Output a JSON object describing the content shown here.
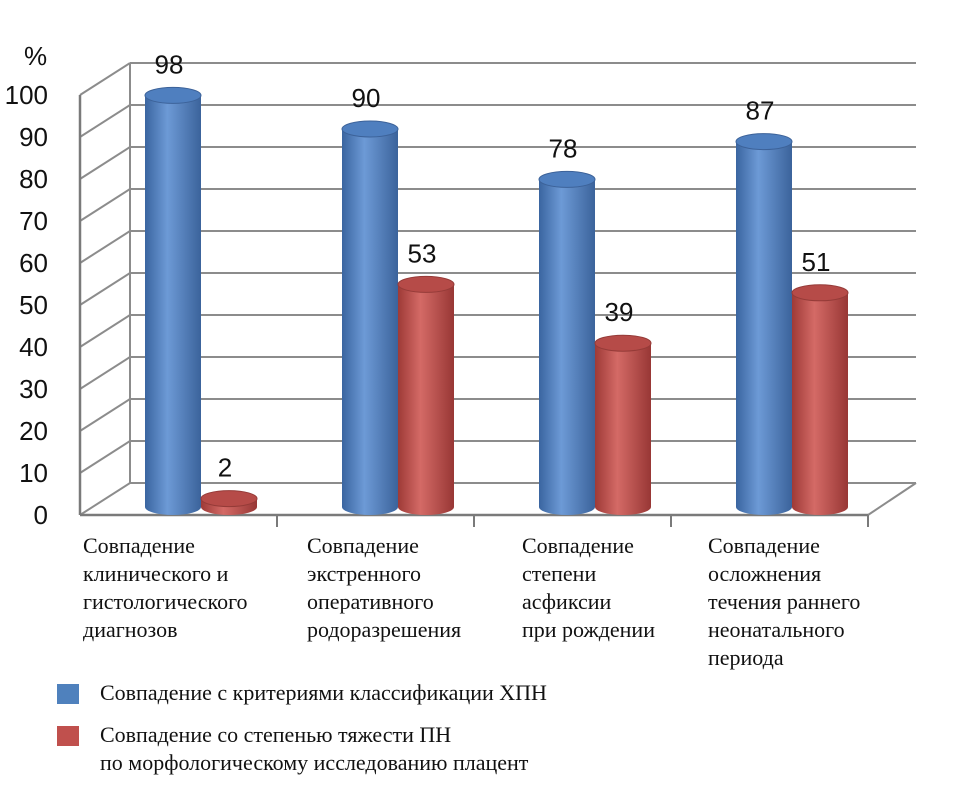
{
  "chart_data": {
    "type": "bar",
    "ylabel": "%",
    "ylim": [
      0,
      100
    ],
    "yticks": [
      "0",
      "10",
      "20",
      "30",
      "40",
      "50",
      "60",
      "70",
      "80",
      "90",
      "100"
    ],
    "grid": true,
    "legend_position": "bottom",
    "categories": [
      [
        "Совпадение",
        "клинического и",
        "гистологического",
        "диагнозов"
      ],
      [
        "Совпадение",
        "экстренного",
        "оперативного",
        "родоразрешения"
      ],
      [
        "Совпадение",
        "степени",
        "асфиксии",
        "при рождении"
      ],
      [
        "Совпадение",
        "осложнения",
        "течения раннего",
        "неонатального",
        "периода"
      ]
    ],
    "series": [
      {
        "name": "Совпадение с критериями классификации ХПН",
        "values": [
          98,
          90,
          78,
          87
        ],
        "color": "#4f81bd"
      },
      {
        "name": "Совпадение со степенью тяжести ПН по морфологическому исследованию плацент",
        "values": [
          2,
          53,
          39,
          51
        ],
        "color": "#c0504d"
      }
    ],
    "legend": [
      {
        "lines": [
          "Совпадение с критериями классификации ХПН"
        ]
      },
      {
        "lines": [
          "Совпадение со степенью тяжести ПН",
          "по морфологическому исследованию плацент"
        ]
      }
    ]
  }
}
